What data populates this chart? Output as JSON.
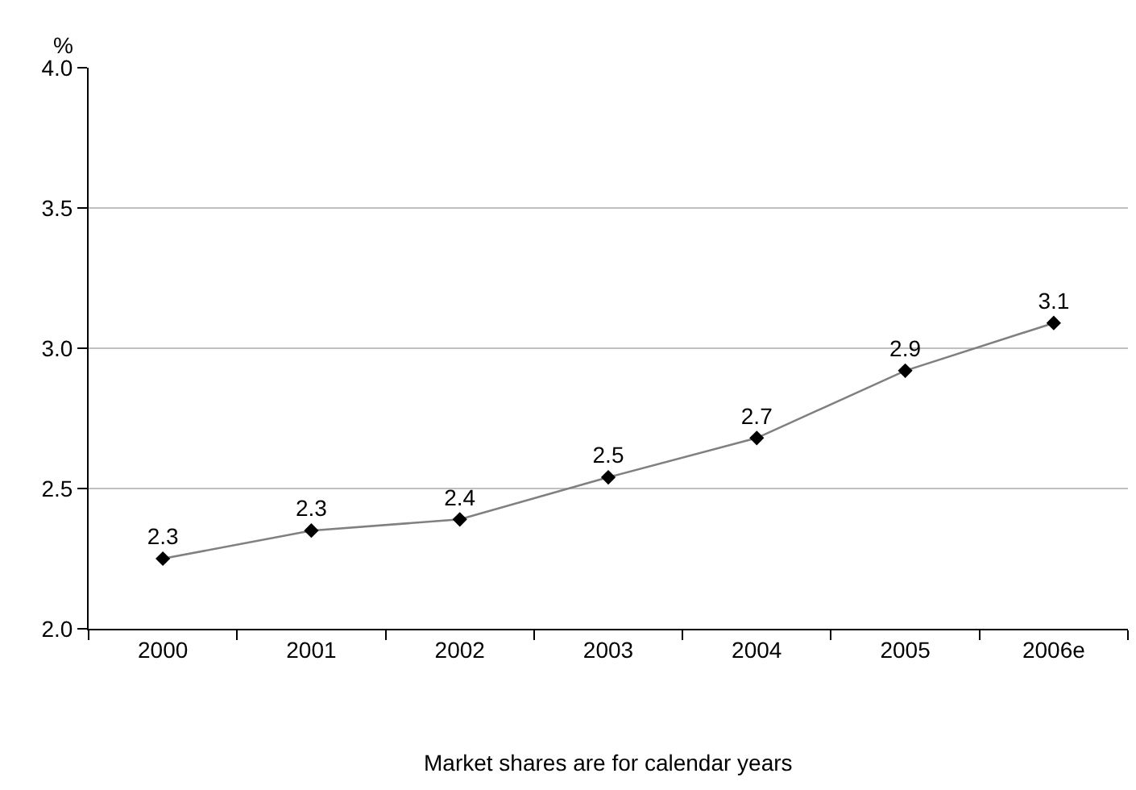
{
  "chart_data": {
    "type": "line",
    "ylabel": "%",
    "categories": [
      "2000",
      "2001",
      "2002",
      "2003",
      "2004",
      "2005",
      "2006e"
    ],
    "series": [
      {
        "color": "#808080",
        "values": [
          2.25,
          2.35,
          2.39,
          2.54,
          2.68,
          2.92,
          3.09
        ],
        "value_labels": [
          "2.3",
          "2.3",
          "2.4",
          "2.5",
          "2.7",
          "2.9",
          "3.1"
        ]
      }
    ],
    "ylim": [
      2.0,
      4.0
    ],
    "yticks": [
      {
        "value": 2,
        "label": "2.0"
      },
      {
        "value": 2.5,
        "label": "2.5"
      },
      {
        "value": 3,
        "label": "3.0"
      },
      {
        "value": 3.5,
        "label": "3.5"
      },
      {
        "value": 4,
        "label": "4.0"
      }
    ],
    "grid": "y",
    "legend": false,
    "marker": "diamond",
    "line_style": "solid",
    "annotations": [
      "Market shares are for calendar years"
    ]
  }
}
